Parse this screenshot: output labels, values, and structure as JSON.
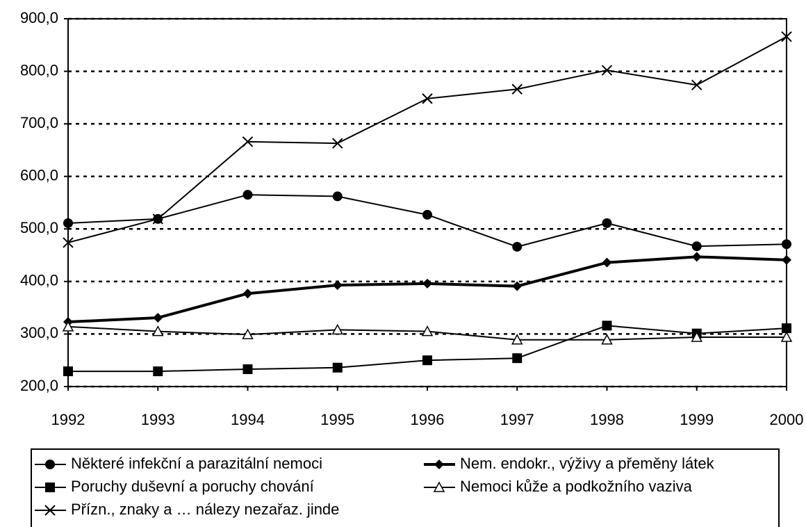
{
  "chart_data": {
    "type": "line",
    "x": [
      1992,
      1993,
      1994,
      1995,
      1996,
      1997,
      1998,
      1999,
      2000
    ],
    "xlim": [
      1992,
      2000
    ],
    "xticks": [
      1992,
      1993,
      1994,
      1995,
      1996,
      1997,
      1998,
      1999,
      2000
    ],
    "ylim": [
      200,
      900
    ],
    "yticks": [
      {
        "value": 200,
        "label": "200,0"
      },
      {
        "value": 300,
        "label": "300,0"
      },
      {
        "value": 400,
        "label": "400,0"
      },
      {
        "value": 500,
        "label": "500,0"
      },
      {
        "value": 600,
        "label": "600,0"
      },
      {
        "value": 700,
        "label": "700,0"
      },
      {
        "value": 800,
        "label": "800,0"
      },
      {
        "value": 900,
        "label": "900,0"
      }
    ],
    "grid": true,
    "legend": "bottom",
    "series": [
      {
        "name": "Některé infekční a parazitální nemoci",
        "color": "#000000",
        "marker": "circle",
        "line_width": 2,
        "values": [
          511,
          519,
          565,
          562,
          527,
          466,
          511,
          467,
          471
        ]
      },
      {
        "name": "Nem. endokr., výživy a přeměny látek",
        "color": "#000000",
        "marker": "diamond",
        "line_width": 4,
        "values": [
          323,
          331,
          377,
          393,
          396,
          391,
          436,
          447,
          441
        ]
      },
      {
        "name": "Poruchy duševní a poruchy chování",
        "color": "#000000",
        "marker": "square",
        "line_width": 2,
        "values": [
          229,
          229,
          233,
          236,
          250,
          254,
          316,
          301,
          311
        ]
      },
      {
        "name": "Nemoci kůže a podkožního vaziva",
        "color": "#000000",
        "marker": "triangle",
        "line_width": 2,
        "values": [
          314,
          305,
          299,
          308,
          305,
          289,
          289,
          294,
          294
        ]
      },
      {
        "name": "Přízn., znaky a … nálezy nezařaz. jinde",
        "color": "#000000",
        "marker": "cross",
        "line_width": 2,
        "values": [
          474,
          519,
          666,
          663,
          748,
          766,
          802,
          774,
          866
        ]
      }
    ]
  }
}
